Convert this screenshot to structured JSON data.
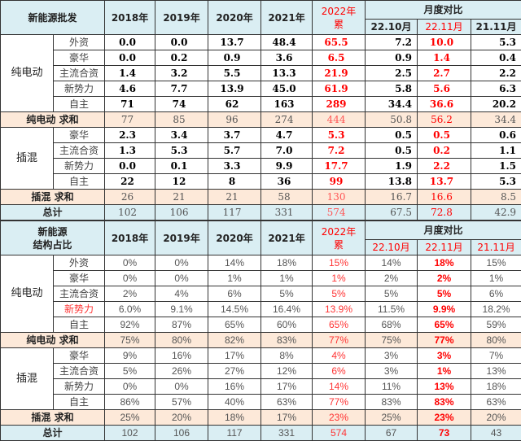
{
  "tables": [
    {
      "kind": "volume",
      "title_lines": [
        "新能源批发"
      ],
      "years": [
        "2018年",
        "2019年",
        "2020年",
        "2021年"
      ],
      "ytd": [
        "2022年",
        "累"
      ],
      "monthly_title": "月度对比",
      "months": [
        "22.10月",
        "22.11月",
        "21.11月"
      ],
      "months_red": [
        false,
        true,
        false
      ],
      "groups": [
        {
          "name": "纯电动",
          "rows": [
            {
              "label": "外资",
              "values": [
                "0.0",
                "0.0",
                "13.7",
                "48.4",
                "65.5",
                "7.2",
                "10.0",
                "5.3"
              ]
            },
            {
              "label": "豪华",
              "values": [
                "0.0",
                "0.2",
                "0.9",
                "3.6",
                "6.5",
                "0.9",
                "1.4",
                "0.4"
              ]
            },
            {
              "label": "主流合资",
              "values": [
                "1.4",
                "3.2",
                "5.5",
                "13.3",
                "21.9",
                "2.5",
                "2.7",
                "2.2"
              ]
            },
            {
              "label": "新势力",
              "values": [
                "4.6",
                "7.7",
                "13.9",
                "45.0",
                "61.9",
                "5.8",
                "5.6",
                "6.3"
              ]
            },
            {
              "label": "自主",
              "values": [
                "71",
                "74",
                "62",
                "163",
                "289",
                "34.4",
                "36.6",
                "20.2"
              ]
            }
          ],
          "sum": {
            "label": "纯电动 求和",
            "values": [
              "77",
              "85",
              "96",
              "274",
              "444",
              "50.8",
              "56.2",
              "34.4"
            ]
          }
        },
        {
          "name": "插混",
          "rows": [
            {
              "label": "豪华",
              "values": [
                "2.3",
                "3.4",
                "3.7",
                "4.7",
                "5.3",
                "0.5",
                "0.5",
                "0.6"
              ]
            },
            {
              "label": "主流合资",
              "values": [
                "1.3",
                "5.3",
                "5.7",
                "7.0",
                "7.2",
                "0.5",
                "0.2",
                "1.1"
              ]
            },
            {
              "label": "新势力",
              "values": [
                "0.0",
                "0.1",
                "3.3",
                "9.9",
                "17.7",
                "1.9",
                "2.2",
                "1.5"
              ]
            },
            {
              "label": "自主",
              "values": [
                "22",
                "12",
                "8",
                "36",
                "99",
                "13.8",
                "13.7",
                "5.3"
              ]
            }
          ],
          "sum": {
            "label": "插混 求和",
            "values": [
              "26",
              "21",
              "21",
              "58",
              "130",
              "16.7",
              "16.6",
              "8.5"
            ]
          }
        }
      ],
      "total": {
        "label": "总计",
        "values": [
          "102",
          "106",
          "117",
          "331",
          "574",
          "67.5",
          "72.8",
          "42.9"
        ]
      }
    },
    {
      "kind": "pct",
      "title_lines": [
        "新能源",
        "结构占比"
      ],
      "years": [
        "2018年",
        "2019年",
        "2020年",
        "2021年"
      ],
      "ytd": [
        "2022年",
        "累"
      ],
      "monthly_title": "月度对比",
      "months": [
        "22.10月",
        "22.11月",
        "21.11月"
      ],
      "months_red": [
        true,
        true,
        true
      ],
      "groups": [
        {
          "name": "纯电动",
          "rows": [
            {
              "label": "外资",
              "values": [
                "0%",
                "0%",
                "14%",
                "18%",
                "15%",
                "14%",
                "18%",
                "15%"
              ]
            },
            {
              "label": "豪华",
              "values": [
                "0%",
                "0%",
                "1%",
                "1%",
                "1%",
                "2%",
                "2%",
                "1%"
              ]
            },
            {
              "label": "主流合资",
              "values": [
                "2%",
                "4%",
                "6%",
                "5%",
                "5%",
                "5%",
                "5%",
                "6%"
              ]
            },
            {
              "label": "新势力",
              "red": true,
              "values": [
                "6.0%",
                "9.1%",
                "14.5%",
                "16.4%",
                "13.9%",
                "11.5%",
                "9.9%",
                "18.2%"
              ]
            },
            {
              "label": "自主",
              "values": [
                "92%",
                "87%",
                "65%",
                "60%",
                "65%",
                "68%",
                "65%",
                "59%"
              ]
            }
          ],
          "sum": {
            "label": "纯电动 求和",
            "values": [
              "75%",
              "80%",
              "82%",
              "83%",
              "77%",
              "75%",
              "77%",
              "80%"
            ]
          }
        },
        {
          "name": "插混",
          "rows": [
            {
              "label": "豪华",
              "values": [
                "9%",
                "16%",
                "17%",
                "8%",
                "4%",
                "3%",
                "3%",
                "7%"
              ]
            },
            {
              "label": "主流合资",
              "values": [
                "5%",
                "26%",
                "27%",
                "12%",
                "6%",
                "3%",
                "1%",
                "13%"
              ]
            },
            {
              "label": "新势力",
              "values": [
                "0%",
                "0%",
                "16%",
                "17%",
                "14%",
                "11%",
                "13%",
                "18%"
              ]
            },
            {
              "label": "自主",
              "values": [
                "86%",
                "57%",
                "40%",
                "63%",
                "77%",
                "83%",
                "83%",
                "63%"
              ]
            }
          ],
          "sum": {
            "label": "插混 求和",
            "values": [
              "25%",
              "20%",
              "18%",
              "17%",
              "23%",
              "25%",
              "23%",
              "20%"
            ]
          }
        }
      ],
      "total": {
        "label": "总计",
        "values": [
          "102",
          "106",
          "117",
          "331",
          "574",
          "67",
          "73",
          "43"
        ]
      }
    }
  ]
}
